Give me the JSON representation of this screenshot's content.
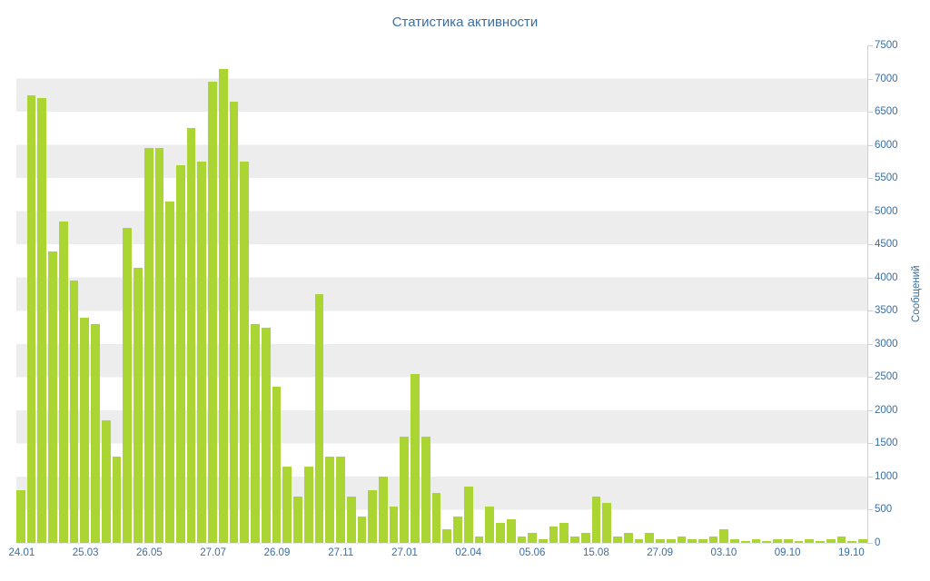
{
  "chart_data": {
    "type": "bar",
    "title": "Статистика активности",
    "ylabel": "Сообщений",
    "xlabel": "",
    "ylim": [
      0,
      7500
    ],
    "y_tick_step": 500,
    "y_tick_labels": [
      "0",
      "500",
      "1000",
      "1500",
      "2000",
      "2500",
      "3000",
      "3500",
      "4000",
      "4500",
      "5000",
      "5500",
      "6000",
      "6500",
      "7000",
      "7500"
    ],
    "x_tick_labels": [
      "24.01",
      "25.03",
      "26.05",
      "27.07",
      "26.09",
      "27.11",
      "27.01",
      "02.04",
      "05.06",
      "15.08",
      "27.09",
      "03.10",
      "09.10",
      "19.10"
    ],
    "x_tick_every_n_bars": 6,
    "grid": "horizontal-stripes",
    "legend": "none",
    "bar_color": "#abd532",
    "stripe_color": "#ededed",
    "axis_color": "#c9d2da",
    "text_color": "#3c6e9f",
    "values": [
      800,
      6750,
      6700,
      4400,
      4850,
      3950,
      3400,
      3300,
      1850,
      1300,
      4750,
      4150,
      5950,
      5950,
      5150,
      5700,
      6250,
      5750,
      6950,
      7150,
      6650,
      5750,
      3300,
      3250,
      2350,
      1150,
      700,
      1150,
      3750,
      1300,
      1300,
      700,
      400,
      800,
      1000,
      550,
      1600,
      2550,
      1600,
      750,
      200,
      400,
      850,
      100,
      550,
      300,
      350,
      100,
      150,
      50,
      250,
      300,
      100,
      150,
      700,
      600,
      100,
      150,
      50,
      150,
      50,
      50,
      100,
      50,
      50,
      100,
      200,
      50,
      30,
      50,
      30,
      50,
      50,
      30,
      50,
      30,
      50,
      100,
      30,
      50
    ]
  }
}
